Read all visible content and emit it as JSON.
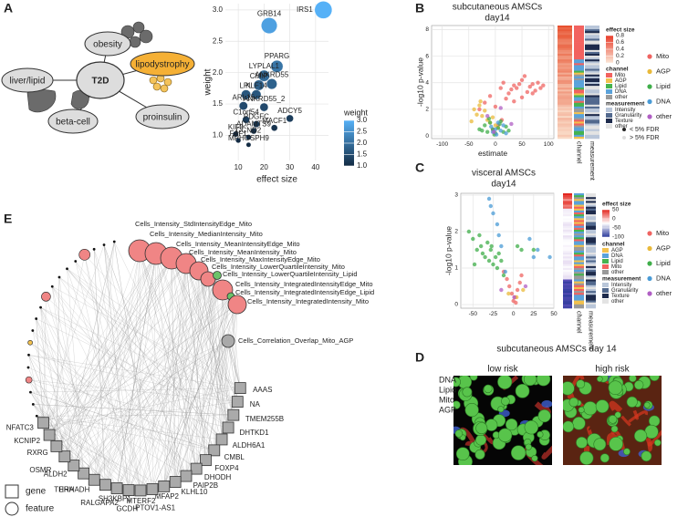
{
  "panel_labels": [
    "A",
    "B",
    "C",
    "D",
    "E"
  ],
  "diagram": {
    "center": "T2D",
    "nodes": [
      "obesity",
      "lipodystrophy",
      "liver/lipid",
      "proinsulin",
      "beta-cell"
    ]
  },
  "chart_data": [
    {
      "type": "bubble",
      "x_label": "effect size",
      "y_label": "weight",
      "labels": [
        "IRS1",
        "GRB14",
        "PPARG",
        "LYPLAL1",
        "ANKRD55",
        "CMIP",
        "KLF14",
        "LPL",
        "ARL15",
        "ANKRD55_2",
        "ADCY5",
        "C1orf54",
        "PDGFC",
        "MACF1",
        "ADAMTS9",
        "KIF9",
        "CCND2",
        "FAF1",
        "MPHOSPH9"
      ],
      "x": [
        43,
        22,
        25,
        20,
        23,
        18,
        17,
        13,
        12,
        20,
        30,
        13,
        17,
        24,
        16,
        9,
        14,
        10,
        14
      ],
      "values": [
        3.0,
        2.75,
        2.1,
        1.95,
        1.82,
        1.8,
        1.65,
        1.65,
        1.47,
        1.45,
        1.27,
        1.25,
        1.18,
        1.12,
        1.07,
        1.02,
        0.97,
        0.92,
        0.85
      ],
      "xlim": [
        5,
        45
      ],
      "ylim": [
        0.6,
        3.1
      ],
      "xticks": [
        10,
        20,
        30,
        40
      ],
      "yticks": [
        {
          "value": 1,
          "label": "1.0"
        },
        {
          "value": 1.5,
          "label": "1.5"
        },
        {
          "value": 2,
          "label": "2.0"
        },
        {
          "value": 2.5,
          "label": "2.5"
        },
        {
          "value": 3,
          "label": "3.0"
        }
      ],
      "grid": true,
      "color_scale": {
        "title": "weight",
        "lim": [
          1,
          3
        ],
        "colors": [
          "#132b43",
          "#56b1f7"
        ],
        "ticks": [
          {
            "value": 3,
            "label": "3.0"
          },
          {
            "value": 2.5,
            "label": "2.5"
          },
          {
            "value": 2,
            "label": "2.0"
          },
          {
            "value": 1.5,
            "label": "1.5"
          },
          {
            "value": 1,
            "label": "1.0"
          }
        ]
      }
    },
    {
      "type": "scatter",
      "title": "subcutaneous AMSCs",
      "subtitle": "day14",
      "x_label": "estimate",
      "y_label": "-log10 p-value",
      "xlim": [
        -120,
        110
      ],
      "ylim": [
        -0.2,
        8.3
      ],
      "xticks": [
        -100,
        -50,
        0,
        50,
        100
      ],
      "yticks": [
        0,
        2,
        4,
        6,
        8
      ],
      "grid": true,
      "series": [
        {
          "name": "Mito",
          "color": "#ef6461",
          "x": [
            20,
            25,
            30,
            35,
            40,
            45,
            50,
            55,
            60,
            65,
            70,
            75,
            80,
            85,
            -20,
            -10,
            0,
            10,
            15,
            35,
            50,
            70,
            -30,
            90,
            5,
            -5,
            12
          ],
          "values": [
            2.8,
            3.2,
            3.5,
            3.8,
            3.6,
            3.9,
            4.2,
            4.5,
            3.3,
            3.7,
            3.9,
            3.4,
            4.0,
            3.6,
            2.5,
            3.0,
            2.2,
            3.6,
            4.0,
            2.6,
            2.9,
            3.2,
            2.0,
            3.8,
            0.8,
            0.5,
            1.2
          ]
        },
        {
          "name": "AGP",
          "color": "#e9b93a",
          "x": [
            -40,
            -35,
            -30,
            -25,
            -20,
            -15,
            -10,
            -5,
            0,
            5,
            -45,
            -28
          ],
          "values": [
            2.0,
            1.6,
            2.3,
            1.5,
            1.9,
            1.2,
            1.0,
            1.4,
            0.8,
            0.6,
            1.1,
            2.6
          ]
        },
        {
          "name": "Lipid",
          "color": "#3fae4a",
          "x": [
            -25,
            -20,
            -15,
            -10,
            -5,
            0,
            5,
            10,
            15,
            20,
            -30,
            -12,
            8,
            25,
            -2
          ],
          "values": [
            0.4,
            0.8,
            0.3,
            1.0,
            0.5,
            0.2,
            0.6,
            1.1,
            0.3,
            0.7,
            0.5,
            1.3,
            0.9,
            0.4,
            0.1
          ]
        },
        {
          "name": "DNA",
          "color": "#4a9bd6",
          "x": [
            -5,
            0,
            5,
            10,
            15,
            20,
            2,
            -8
          ],
          "values": [
            0.3,
            0.5,
            1.0,
            0.4,
            0.8,
            0.2,
            0.1,
            0.7
          ]
        },
        {
          "name": "other",
          "color": "#b05fc4",
          "x": [
            -15,
            10,
            30,
            -3
          ],
          "values": [
            1.5,
            2.1,
            0.9,
            0.3
          ]
        }
      ],
      "strip_labels": [
        "channel",
        "measurement"
      ],
      "effect_size": {
        "title": "effect size",
        "lim": [
          0,
          0.8
        ],
        "colors": [
          "#fbe7d6",
          "#e83b2a"
        ],
        "ticks": [
          0.8,
          0.6,
          0.4,
          0.2,
          0
        ]
      },
      "channel": {
        "title": "channel",
        "items": [
          {
            "name": "Mito",
            "color": "#f2625f"
          },
          {
            "name": "AGP",
            "color": "#f2c14e"
          },
          {
            "name": "Lipid",
            "color": "#46b34f"
          },
          {
            "name": "DNA",
            "color": "#5aa2da"
          },
          {
            "name": "other",
            "color": "#9a9a9a"
          }
        ]
      },
      "measurement": {
        "title": "measurement",
        "items": [
          {
            "name": "Intensity",
            "color": "#b9c6d9"
          },
          {
            "name": "Granularity",
            "color": "#52698e"
          },
          {
            "name": "Texture",
            "color": "#1e2b4c"
          },
          {
            "name": "other",
            "color": "#e3e3e3"
          }
        ]
      },
      "fdr_labels": [
        "< 5% FDR",
        "> 5% FDR"
      ]
    },
    {
      "type": "scatter",
      "title": "visceral AMSCs",
      "subtitle": "day14",
      "y_label": "-log10 p-value",
      "xlim": [
        -65,
        50
      ],
      "ylim": [
        -0.1,
        3.05
      ],
      "xticks": [
        -50,
        -25,
        0,
        25,
        50
      ],
      "yticks": [
        0,
        1,
        2,
        3
      ],
      "grid": true,
      "series": [
        {
          "name": "Mito",
          "color": "#ef6461",
          "x": [
            -5,
            -2,
            0,
            2,
            5,
            8,
            -8,
            3,
            10,
            -12
          ],
          "values": [
            0.5,
            0.3,
            0.1,
            0.2,
            0.4,
            0.6,
            0.7,
            0.05,
            0.8,
            0.9
          ]
        },
        {
          "name": "AGP",
          "color": "#e9b93a",
          "x": [
            -6,
            4,
            12
          ],
          "values": [
            0.3,
            0.2,
            0.4
          ]
        },
        {
          "name": "Lipid",
          "color": "#3fae4a",
          "x": [
            -55,
            -50,
            -45,
            -40,
            -38,
            -35,
            -32,
            -30,
            -28,
            -25,
            -22,
            -20,
            -18,
            -15,
            -12,
            -42,
            -48,
            -27,
            5,
            10,
            25
          ],
          "values": [
            2.0,
            1.8,
            1.5,
            1.6,
            1.4,
            1.3,
            1.7,
            1.2,
            1.5,
            1.1,
            1.3,
            1.0,
            1.4,
            1.2,
            0.8,
            1.9,
            1.1,
            1.6,
            1.6,
            1.5,
            1.5
          ]
        },
        {
          "name": "DNA",
          "color": "#4a9bd6",
          "x": [
            -30,
            -28,
            -25,
            -20,
            -18,
            -15,
            20,
            25,
            30,
            45,
            -10
          ],
          "values": [
            2.9,
            2.7,
            2.5,
            2.2,
            1.9,
            1.6,
            1.8,
            1.3,
            1.5,
            1.3,
            0.9
          ]
        },
        {
          "name": "other",
          "color": "#b05fc4",
          "x": [
            -15,
            15,
            1
          ],
          "values": [
            0.4,
            0.5,
            0.2
          ]
        }
      ],
      "strip_labels": [
        "channel",
        "measurement"
      ],
      "effect_size": {
        "title": "effect size",
        "lim": [
          -100,
          50
        ],
        "colors": [
          "#2b3a9b",
          "#ffffff",
          "#e3261f"
        ],
        "ticks": [
          50,
          0,
          -50,
          -100
        ]
      },
      "channel": {
        "title": "channel",
        "items": [
          {
            "name": "AGP",
            "color": "#f2c14e"
          },
          {
            "name": "DNA",
            "color": "#5aa2da"
          },
          {
            "name": "Lipid",
            "color": "#46b34f"
          },
          {
            "name": "Mito",
            "color": "#f2625f"
          },
          {
            "name": "other",
            "color": "#9a9a9a"
          }
        ]
      },
      "measurement": {
        "title": "measurement",
        "items": [
          {
            "name": "Intensity",
            "color": "#b9c6d9"
          },
          {
            "name": "Granularity",
            "color": "#52698e"
          },
          {
            "name": "Texture",
            "color": "#1e2b4c"
          },
          {
            "name": "other",
            "color": "#e3e3e3"
          }
        ]
      }
    }
  ],
  "images": {
    "title": "subcutaneous AMSCs day 14",
    "labels": [
      "low risk",
      "high risk"
    ],
    "channels": [
      {
        "name": "DNA",
        "color": "#3d7fe0"
      },
      {
        "name": "Lipid",
        "color": "#43c24a"
      },
      {
        "name": "Mito",
        "color": "#e8322a"
      },
      {
        "name": "AGP",
        "color": "#e6c32c"
      }
    ]
  },
  "network": {
    "features": [
      {
        "label": "Cells_Intensity_StdIntensityEdge_Mito",
        "color": "#f08585"
      },
      {
        "label": "Cells_Intensity_MedianIntensity_Mito",
        "color": "#f08585"
      },
      {
        "label": "Cells_Intensity_MeanIntensityEdge_Mito",
        "color": "#f08585"
      },
      {
        "label": "Cells_Intensity_MeanIntensity_Mito",
        "color": "#f08585"
      },
      {
        "label": "Cells_Intensity_MaxIntensityEdge_Mito",
        "color": "#f08585"
      },
      {
        "label": "Cells_Intensity_LowerQuartileIntensity_Mito",
        "color": "#f08585"
      },
      {
        "label": "Cells_Intensity_LowerQuartileIntensity_Lipid",
        "color": "#6cc36a"
      },
      {
        "label": "Cells_Intensity_IntegratedIntensityEdge_Mito",
        "color": "#f08585"
      },
      {
        "label": "Cells_Intensity_IntegratedIntensityEdge_Lipid",
        "color": "#6cc36a"
      },
      {
        "label": "Cells_Intensity_IntegratedIntensity_Mito",
        "color": "#f08585"
      },
      {
        "label": "Cells_Correlation_Overlap_Mito_AGP",
        "color": "#a9a9a9"
      }
    ],
    "genes": [
      "AAAS",
      "NA",
      "TMEM255B",
      "DHTKD1",
      "ALDH6A1",
      "CMBL",
      "FOXP4",
      "DHODH",
      "PAIP2B",
      "KLHL10",
      "MFAP2",
      "PTOV1-AS1",
      "MTERF2",
      "GCDH",
      "SH3KBP1",
      "RALGAPA2",
      "EHHADH",
      "THRA",
      "ALDH2",
      "OSMR",
      "RXRG",
      "KCNIP2",
      "NFATC3"
    ],
    "legend": [
      "gene",
      "feature"
    ]
  }
}
